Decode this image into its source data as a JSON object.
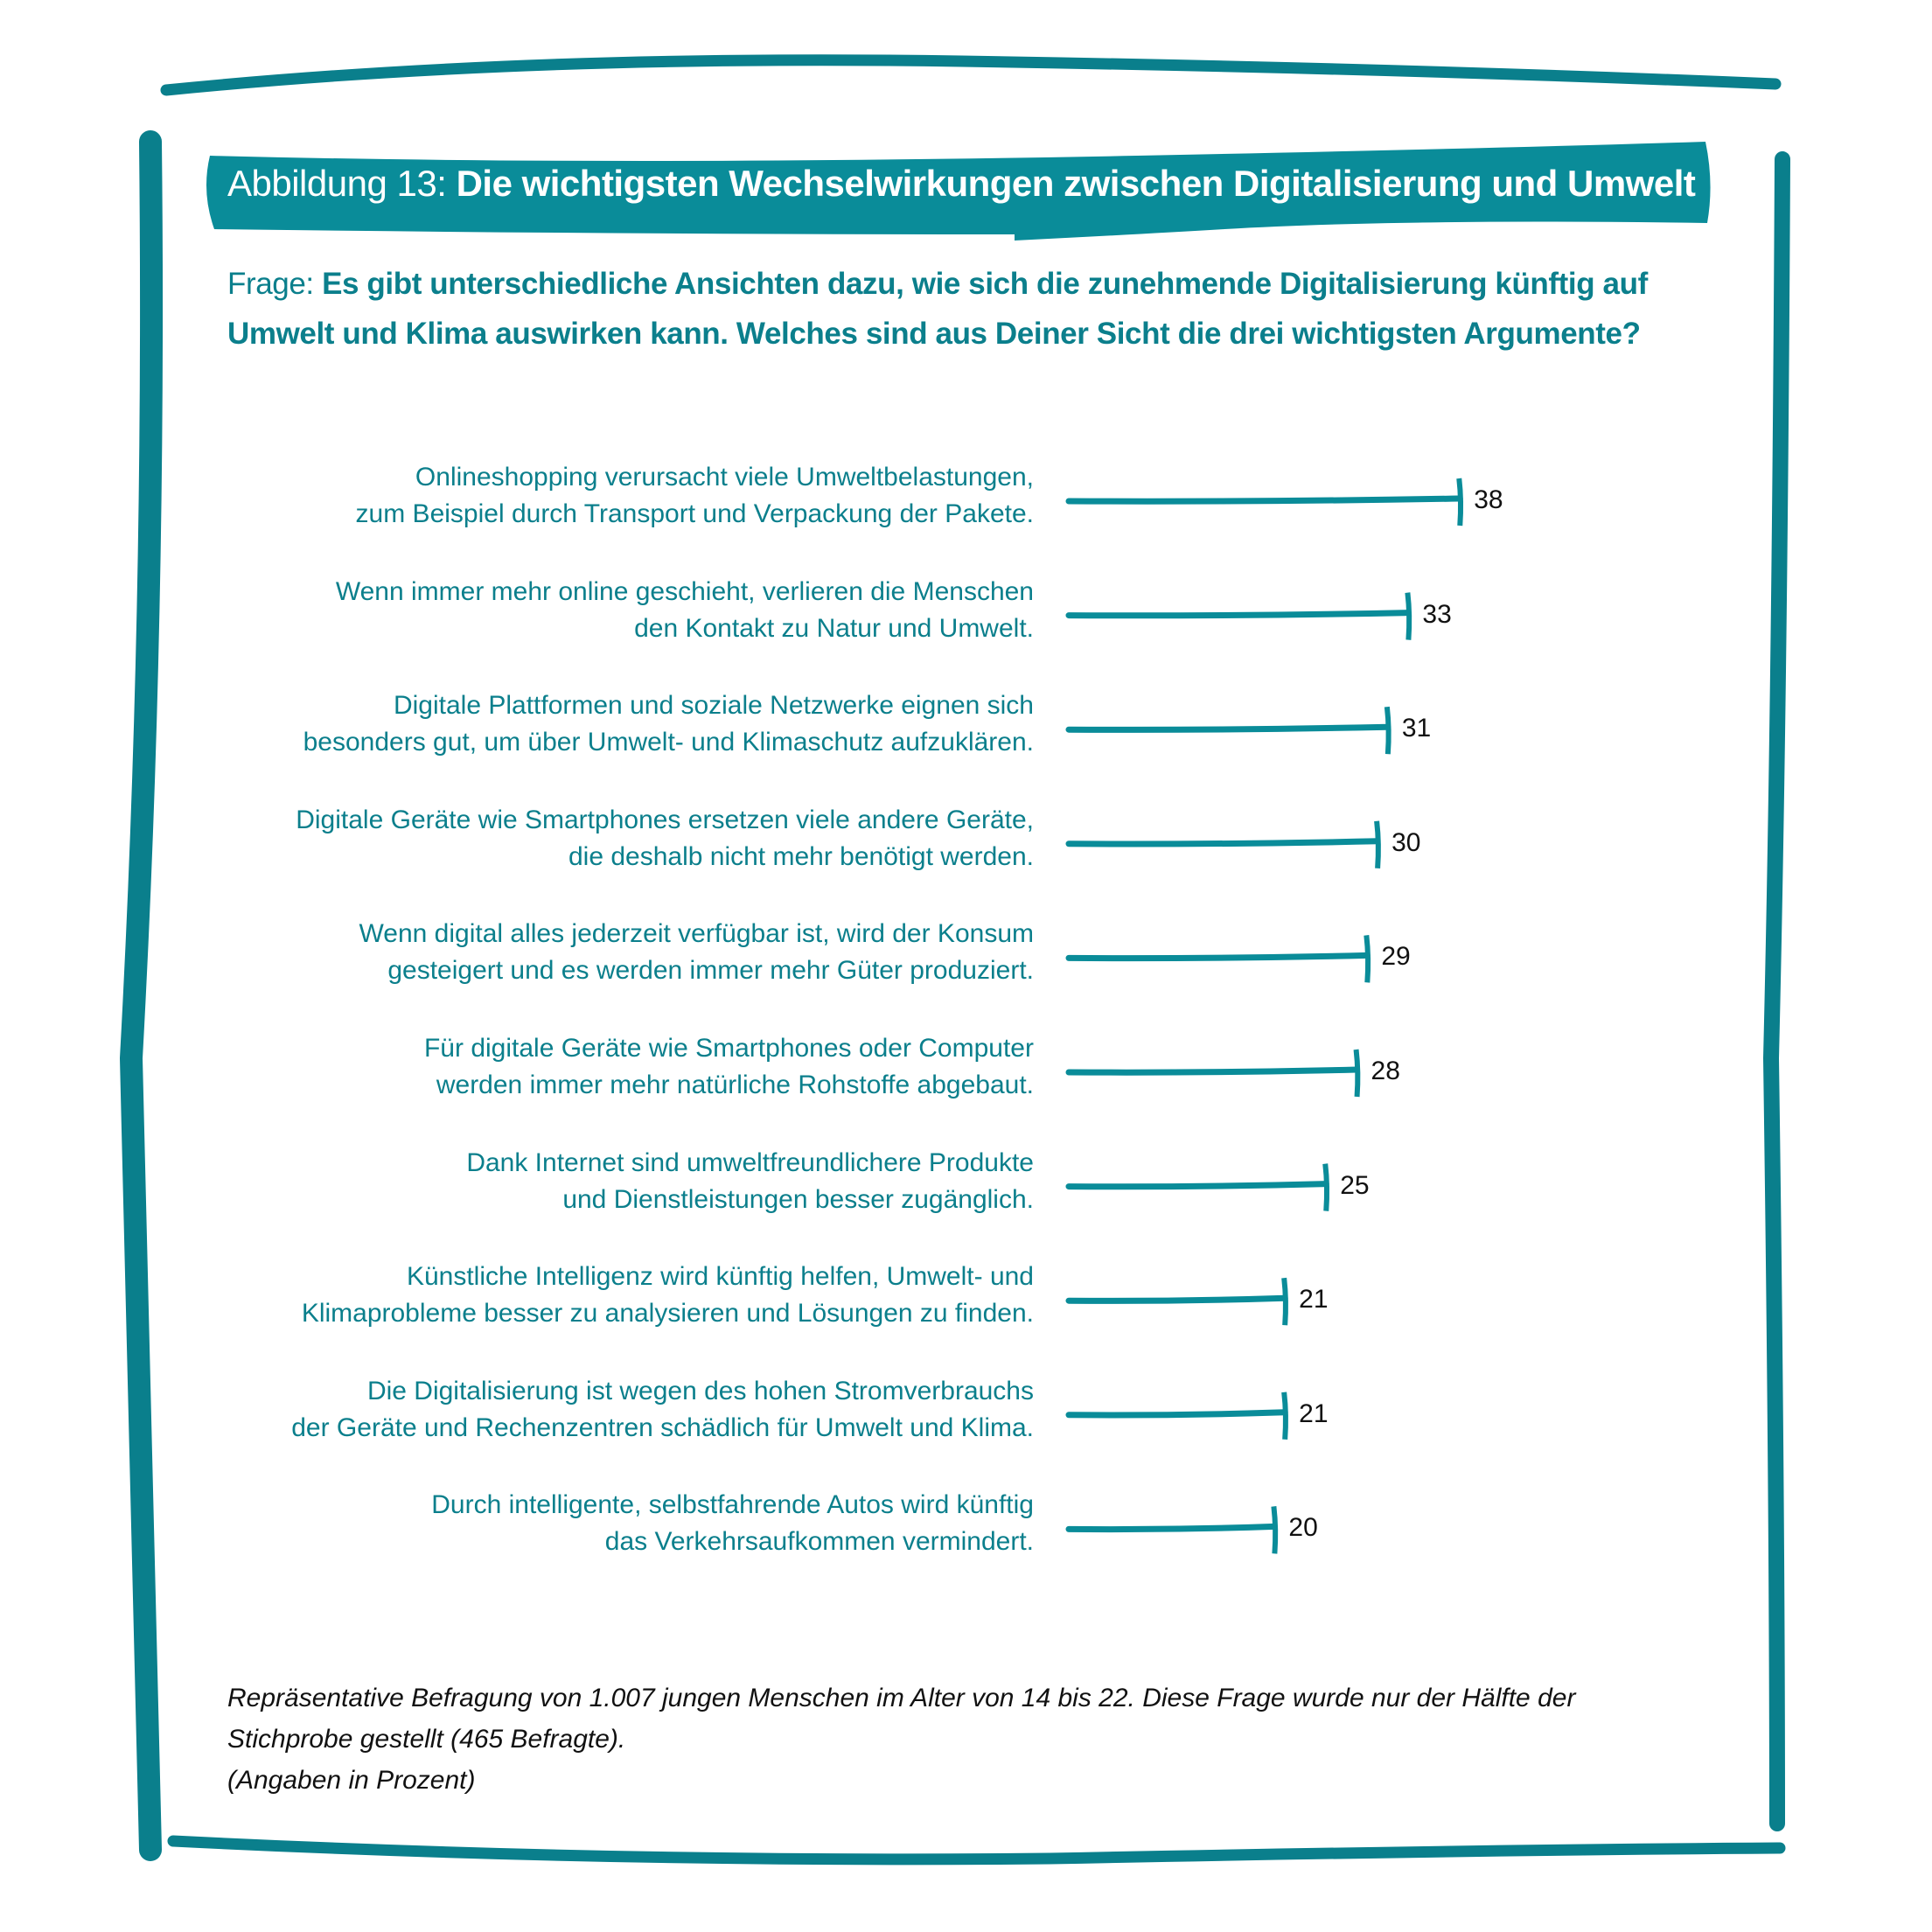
{
  "title": {
    "prefix": "Abbildung 13:",
    "text": "Die wichtigsten Wechselwirkungen zwischen Digitalisierung und Umwelt"
  },
  "question": {
    "prefix": "Frage:",
    "text": "Es gibt unterschiedliche Ansichten dazu, wie sich die zunehmende Digitalisierung künftig auf Umwelt und Klima auswirken kann. Welches sind aus Deiner Sicht die drei wichtigsten Argumente?"
  },
  "colors": {
    "accent": "#0a8c99",
    "text": "#0b7f8c",
    "values": "#111111"
  },
  "chart_data": {
    "type": "bar",
    "orientation": "horizontal",
    "categories": [
      [
        "Onlineshopping verursacht viele Umweltbelastungen,",
        "zum Beispiel durch Transport und Verpackung der Pakete."
      ],
      [
        "Wenn immer mehr online geschieht, verlieren die Menschen",
        "den Kontakt zu Natur und Umwelt."
      ],
      [
        "Digitale Plattformen und soziale Netzwerke eignen sich",
        "besonders gut, um über Umwelt- und Klimaschutz aufzuklären."
      ],
      [
        "Digitale Geräte wie Smartphones ersetzen viele andere Geräte,",
        "die deshalb nicht mehr benötigt werden."
      ],
      [
        "Wenn digital alles jederzeit verfügbar ist, wird der Konsum",
        "gesteigert und es werden immer mehr Güter produziert."
      ],
      [
        "Für digitale Geräte wie Smartphones oder Computer",
        "werden immer mehr natürliche Rohstoffe abgebaut."
      ],
      [
        "Dank Internet sind umweltfreundlichere Produkte",
        "und Dienstleistungen besser zugänglich."
      ],
      [
        "Künstliche Intelligenz wird künftig helfen, Umwelt- und",
        "Klimaprobleme besser zu analysieren und Lösungen zu finden."
      ],
      [
        "Die Digitalisierung ist wegen des hohen Stromverbrauchs",
        "der Geräte und Rechenzentren schädlich für Umwelt und Klima."
      ],
      [
        "Durch intelligente, selbstfahrende Autos wird künftig",
        "das Verkehrsaufkommen vermindert."
      ]
    ],
    "values": [
      38,
      33,
      31,
      30,
      29,
      28,
      25,
      21,
      21,
      20
    ],
    "value_labels": [
      "38",
      "33",
      "31",
      "30",
      "29",
      "28",
      "25",
      "21",
      "21",
      "20"
    ],
    "xlim": [
      0,
      38
    ],
    "grid": false
  },
  "footnote": [
    "Repräsentative Befragung von 1.007 jungen Menschen im Alter von 14 bis 22. Diese Frage wurde nur der Hälfte der",
    "Stichprobe gestellt (465 Befragte).",
    "(Angaben in Prozent)"
  ]
}
